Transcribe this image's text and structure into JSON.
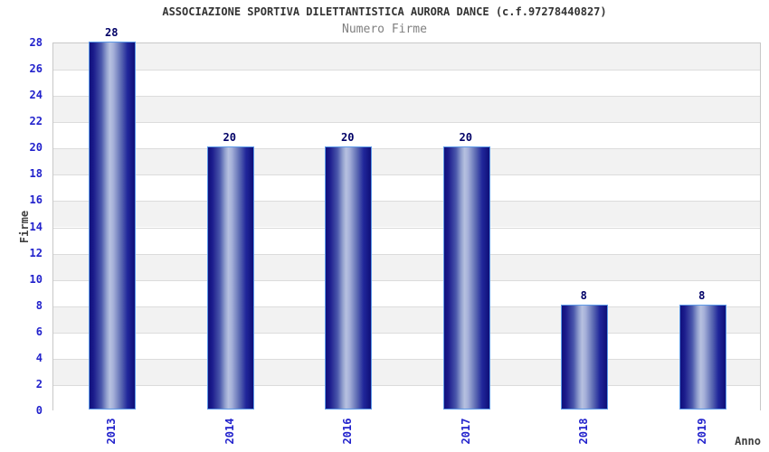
{
  "header": {
    "title": "ASSOCIAZIONE SPORTIVA DILETTANTISTICA AURORA DANCE (c.f.97278440827)",
    "subtitle": "Numero Firme"
  },
  "chart_data": {
    "type": "bar",
    "title": "ASSOCIAZIONE SPORTIVA DILETTANTISTICA AURORA DANCE (c.f.97278440827)",
    "subtitle": "Numero Firme",
    "categories": [
      "2013",
      "2014",
      "2016",
      "2017",
      "2018",
      "2019"
    ],
    "values": [
      28,
      20,
      20,
      20,
      8,
      8
    ],
    "xlabel": "Anno",
    "ylabel": "Firme",
    "ylim": [
      0,
      28
    ],
    "ytick_step": 2,
    "yticks": [
      0,
      2,
      4,
      6,
      8,
      10,
      12,
      14,
      16,
      18,
      20,
      22,
      24,
      26,
      28
    ],
    "grid": "alternating-horizontal-bands",
    "band_step": 2,
    "legend": "none",
    "colors": {
      "bar_edge_dark": "#10107c",
      "bar_center_highlight": "#b7c1e0",
      "bar_border": "#5d9ae8",
      "tick_label": "#2222cc",
      "value_label": "#000066",
      "band_gray": "#f2f2f2",
      "band_white": "#ffffff",
      "grid_line": "#dcdcdc",
      "plot_border": "#c8c8c8",
      "title_color": "#333333",
      "subtitle_color": "#808080",
      "axis_title_color": "#404040"
    }
  }
}
